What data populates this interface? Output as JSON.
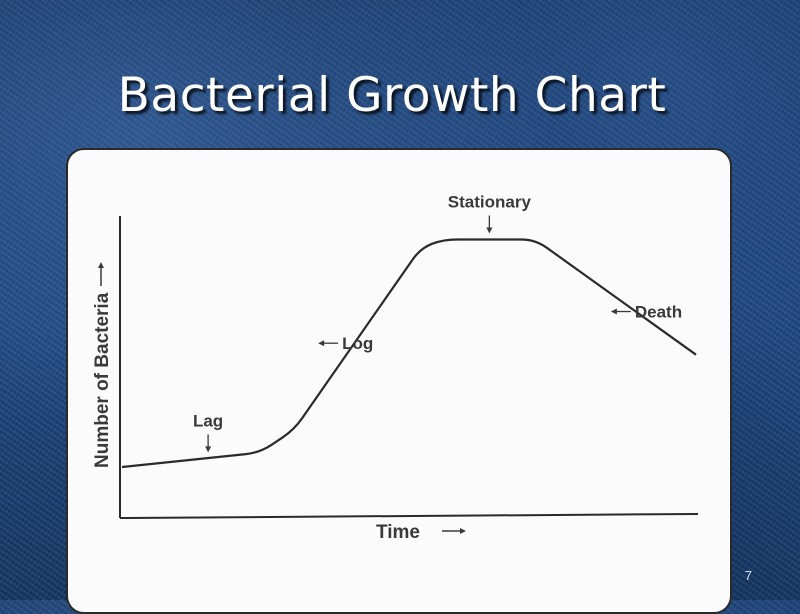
{
  "slide": {
    "title": "Bacterial Growth Chart",
    "number": "7"
  },
  "colors": {
    "background": "#1b4379",
    "title": "#ffffff",
    "panel": "#fbfbfb",
    "ink": "#2a2a2a"
  },
  "chart_data": {
    "type": "line",
    "title": "",
    "xlabel": "Time",
    "ylabel": "Number of Bacteria",
    "xlim": [
      0,
      100
    ],
    "ylim": [
      0,
      100
    ],
    "grid": false,
    "legend": "none",
    "x_ticks_shown": false,
    "y_ticks_shown": false,
    "series": [
      {
        "x": [
          0,
          24,
          30,
          52,
          56,
          72,
          100
        ],
        "y": [
          17,
          22,
          30,
          93,
          96,
          96,
          56
        ]
      }
    ],
    "annotations": [
      {
        "text": "Lag",
        "x": 15,
        "y": 20,
        "arrow": "down"
      },
      {
        "text": "Log",
        "x": 38,
        "y": 60,
        "arrow": "left"
      },
      {
        "text": "Stationary",
        "x": 64,
        "y": 96,
        "arrow": "down"
      },
      {
        "text": "Death",
        "x": 89,
        "y": 71,
        "arrow": "left"
      }
    ]
  }
}
